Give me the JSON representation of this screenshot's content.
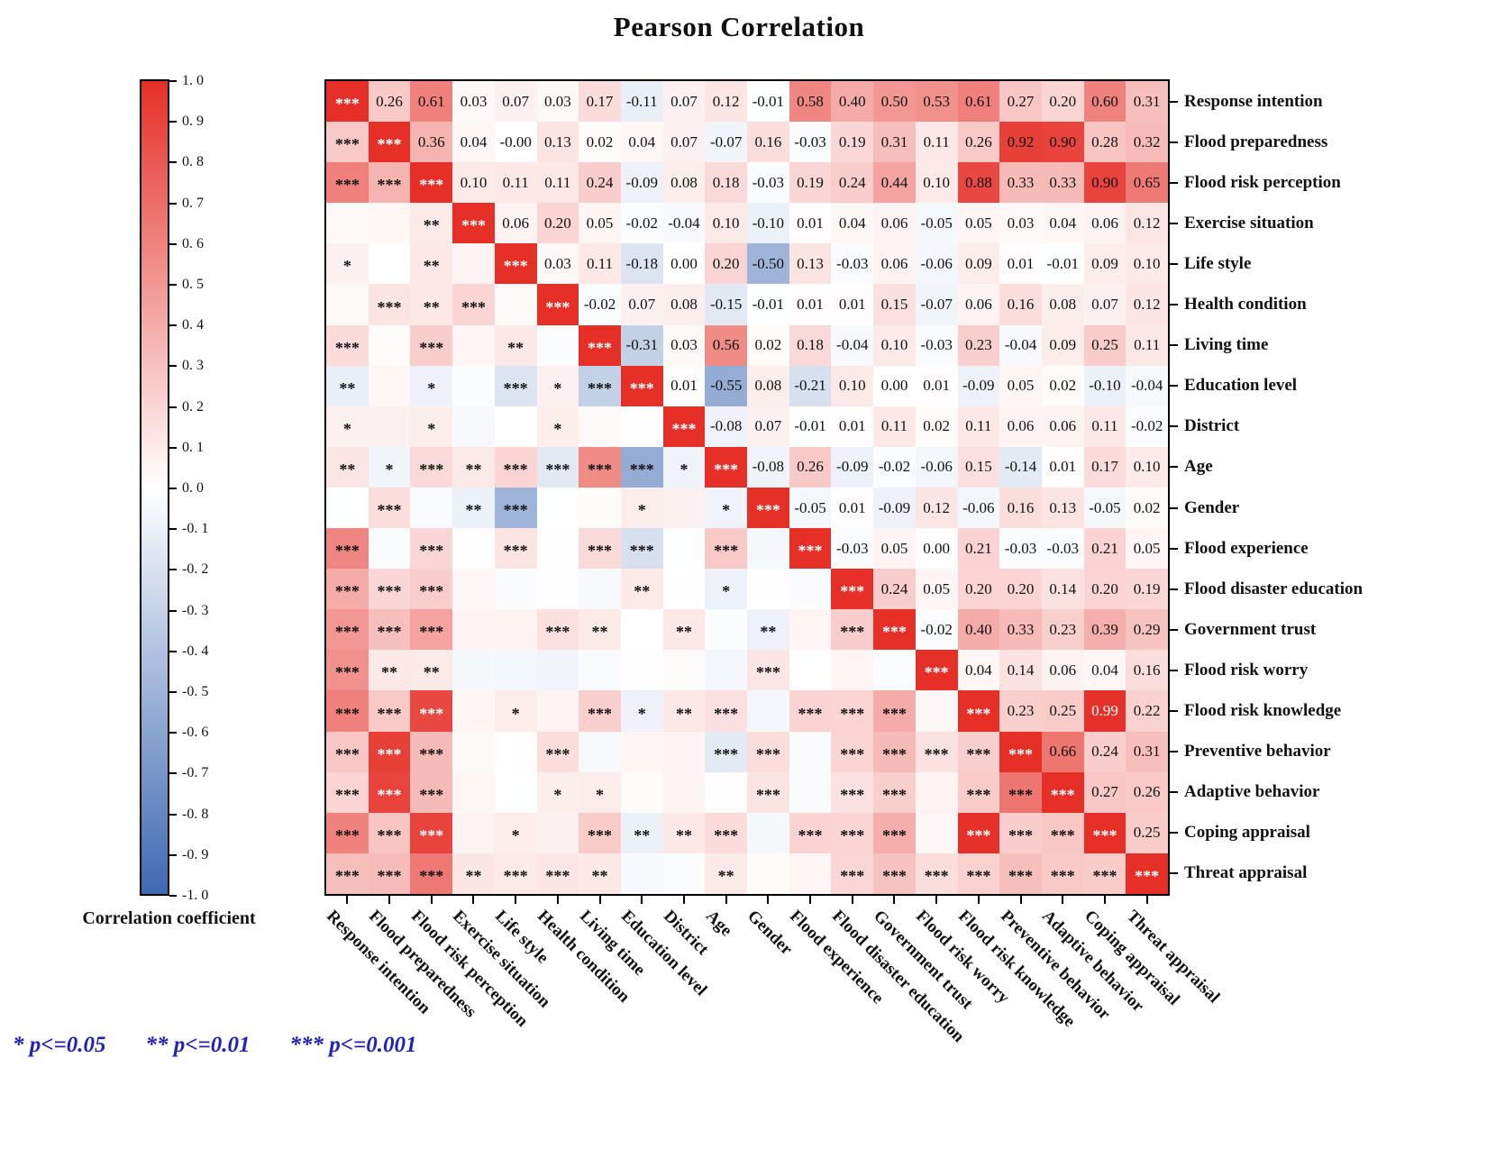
{
  "title": "Pearson Correlation",
  "colorbar": {
    "label": "Correlation coefficient",
    "ticks": [
      "1. 0",
      "0. 9",
      "0. 8",
      "0. 7",
      "0. 6",
      "0. 5",
      "0. 4",
      "0. 3",
      "0. 2",
      "0. 1",
      "0. 0",
      "-0. 1",
      "-0. 2",
      "-0. 3",
      "-0. 4",
      "-0. 5",
      "-0. 6",
      "-0. 7",
      "-0. 8",
      "-0. 9",
      "-1. 0"
    ],
    "range_top": 1.0,
    "range_bottom": -1.0
  },
  "legend": {
    "items": [
      "* p<=0.05",
      "** p<=0.01",
      "*** p<=0.001"
    ],
    "color": "#2222b8"
  },
  "chart_data": {
    "type": "heatmap",
    "title": "Pearson Correlation",
    "value_range": [
      -1,
      1
    ],
    "diagonal_marker": "***",
    "colorbar_position": "left",
    "variables": [
      "Response intention",
      "Flood preparedness",
      "Flood risk perception",
      "Exercise situation",
      "Life style",
      "Health condition",
      "Living time",
      "Education level",
      "District",
      "Age",
      "Gender",
      "Flood experience",
      "Flood disaster education",
      "Government trust",
      "Flood risk worry",
      "Flood risk knowledge",
      "Preventive behavior",
      "Adaptive behavior",
      "Coping appraisal",
      "Threat appraisal"
    ],
    "values_upper": [
      [
        "0.26",
        "0.61",
        "0.03",
        "0.07",
        "0.03",
        "0.17",
        "-0.11",
        "0.07",
        "0.12",
        "-0.01",
        "0.58",
        "0.40",
        "0.50",
        "0.53",
        "0.61",
        "0.27",
        "0.20",
        "0.60",
        "0.31"
      ],
      [
        "0.36",
        "0.04",
        "-0.00",
        "0.13",
        "0.02",
        "0.04",
        "0.07",
        "-0.07",
        "0.16",
        "-0.03",
        "0.19",
        "0.31",
        "0.11",
        "0.26",
        "0.92",
        "0.90",
        "0.28",
        "0.32"
      ],
      [
        "0.10",
        "0.11",
        "0.11",
        "0.24",
        "-0.09",
        "0.08",
        "0.18",
        "-0.03",
        "0.19",
        "0.24",
        "0.44",
        "0.10",
        "0.88",
        "0.33",
        "0.33",
        "0.90",
        "0.65"
      ],
      [
        "0.06",
        "0.20",
        "0.05",
        "-0.02",
        "-0.04",
        "0.10",
        "-0.10",
        "0.01",
        "0.04",
        "0.06",
        "-0.05",
        "0.05",
        "0.03",
        "0.04",
        "0.06",
        "0.12"
      ],
      [
        "0.03",
        "0.11",
        "-0.18",
        "0.00",
        "0.20",
        "-0.50",
        "0.13",
        "-0.03",
        "0.06",
        "-0.06",
        "0.09",
        "0.01",
        "-0.01",
        "0.09",
        "0.10"
      ],
      [
        "-0.02",
        "0.07",
        "0.08",
        "-0.15",
        "-0.01",
        "0.01",
        "0.01",
        "0.15",
        "-0.07",
        "0.06",
        "0.16",
        "0.08",
        "0.07",
        "0.12"
      ],
      [
        "-0.31",
        "0.03",
        "0.56",
        "0.02",
        "0.18",
        "-0.04",
        "0.10",
        "-0.03",
        "0.23",
        "-0.04",
        "0.09",
        "0.25",
        "0.11"
      ],
      [
        "0.01",
        "-0.55",
        "0.08",
        "-0.21",
        "0.10",
        "0.00",
        "0.01",
        "-0.09",
        "0.05",
        "0.02",
        "-0.10",
        "-0.04"
      ],
      [
        "-0.08",
        "0.07",
        "-0.01",
        "0.01",
        "0.11",
        "0.02",
        "0.11",
        "0.06",
        "0.06",
        "0.11",
        "-0.02"
      ],
      [
        "-0.08",
        "0.26",
        "-0.09",
        "-0.02",
        "-0.06",
        "0.15",
        "-0.14",
        "0.01",
        "0.17",
        "0.10"
      ],
      [
        "-0.05",
        "0.01",
        "-0.09",
        "0.12",
        "-0.06",
        "0.16",
        "0.13",
        "-0.05",
        "0.02"
      ],
      [
        "-0.03",
        "0.05",
        "0.00",
        "0.21",
        "-0.03",
        "-0.03",
        "0.21",
        "0.05"
      ],
      [
        "0.24",
        "0.05",
        "0.20",
        "0.20",
        "0.14",
        "0.20",
        "0.19"
      ],
      [
        "-0.02",
        "0.40",
        "0.33",
        "0.23",
        "0.39",
        "0.29"
      ],
      [
        "0.04",
        "0.14",
        "0.06",
        "0.04",
        "0.16"
      ],
      [
        "0.23",
        "0.25",
        "0.99",
        "0.22"
      ],
      [
        "0.66",
        "0.24",
        "0.31"
      ],
      [
        "0.27",
        "0.26"
      ],
      [
        "0.25"
      ],
      []
    ],
    "stars_lower": [
      [],
      [
        "***"
      ],
      [
        "***",
        "***"
      ],
      [
        "",
        "",
        "**"
      ],
      [
        "*",
        "",
        "**",
        ""
      ],
      [
        "",
        "***",
        "**",
        "***",
        ""
      ],
      [
        "***",
        "",
        "***",
        "",
        "**",
        ""
      ],
      [
        "**",
        "",
        "*",
        "",
        "***",
        "*",
        "***"
      ],
      [
        "*",
        "",
        "*",
        "",
        "",
        "*",
        "",
        ""
      ],
      [
        "**",
        "*",
        "***",
        "**",
        "***",
        "***",
        "***",
        "***",
        "*"
      ],
      [
        "",
        "***",
        "",
        "**",
        "***",
        "",
        "",
        "*",
        "",
        "*"
      ],
      [
        "***",
        "",
        "***",
        "",
        "***",
        "",
        "***",
        "***",
        "",
        "***",
        ""
      ],
      [
        "***",
        "***",
        "***",
        "",
        "",
        "",
        "",
        "**",
        "",
        "*",
        "",
        ""
      ],
      [
        "***",
        "***",
        "***",
        "",
        "",
        "***",
        "**",
        "",
        "**",
        "",
        "**",
        "",
        "***"
      ],
      [
        "***",
        "**",
        "**",
        "",
        "",
        "",
        "",
        "",
        "",
        "",
        "***",
        "",
        "",
        ""
      ],
      [
        "***",
        "***",
        "***",
        "",
        "*",
        "",
        "***",
        "*",
        "**",
        "***",
        "",
        "***",
        "***",
        "***",
        ""
      ],
      [
        "***",
        "***",
        "***",
        "",
        "",
        "***",
        "",
        "",
        "",
        "***",
        "***",
        "",
        "***",
        "***",
        "***",
        "***"
      ],
      [
        "***",
        "***",
        "***",
        "",
        "",
        "*",
        "*",
        "",
        "",
        "",
        "***",
        "",
        "***",
        "***",
        "",
        "***",
        "***"
      ],
      [
        "***",
        "***",
        "***",
        "",
        "*",
        "",
        "***",
        "**",
        "**",
        "***",
        "",
        "***",
        "***",
        "***",
        "",
        "***",
        "***",
        "***"
      ],
      [
        "***",
        "***",
        "***",
        "**",
        "***",
        "***",
        "**",
        "",
        "",
        "**",
        "",
        "",
        "***",
        "***",
        "***",
        "***",
        "***",
        "***",
        "***"
      ]
    ],
    "colors": {
      "positive_rgb": [
        229,
        47,
        39
      ],
      "negative_rgb": [
        62,
        105,
        178
      ],
      "zero": "#ffffff"
    }
  }
}
